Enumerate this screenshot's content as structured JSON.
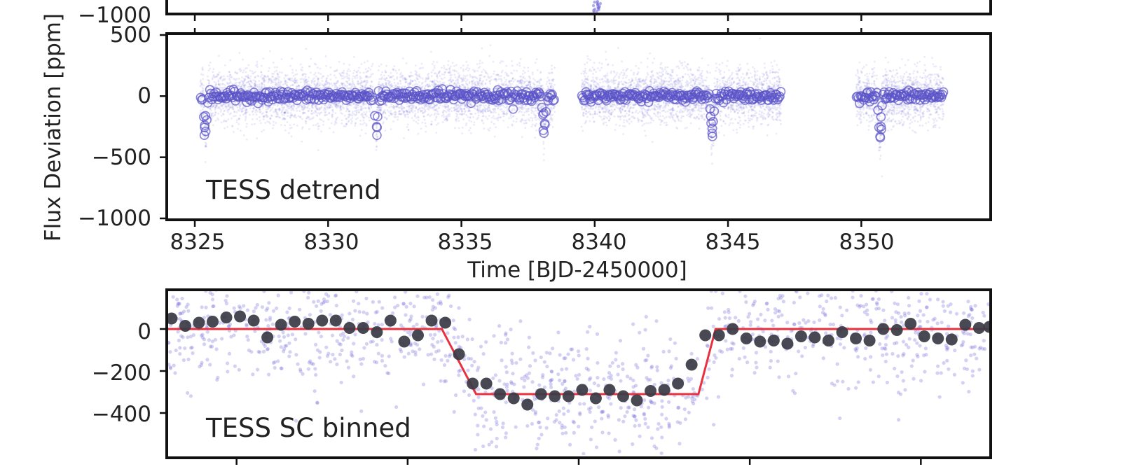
{
  "figure": {
    "y_axis_title": "Flux Deviation [ppm]",
    "x_axis_title": "Time [BJD-2450000]"
  },
  "colors": {
    "raw_points": "#6f68d8",
    "binned_circles": "#5a52c8",
    "binned_dots": "#3a3a44",
    "model_line": "#e8313f",
    "frame": "#111111"
  },
  "chart_data": [
    {
      "type": "scatter",
      "name": "top-panel-partial",
      "ylim": [
        -1000,
        500
      ],
      "yticks": [
        {
          "value": -1000,
          "label": "−1000"
        }
      ],
      "xlim": [
        8324.0,
        8354.8
      ],
      "xticks": [
        8325,
        8330,
        8335,
        8340,
        8345,
        8350
      ],
      "grid": false
    },
    {
      "type": "scatter",
      "panel_label": "TESS detrend",
      "ylim": [
        -1000,
        500
      ],
      "yticks": [
        {
          "value": 500,
          "label": "500"
        },
        {
          "value": 0,
          "label": "0"
        },
        {
          "value": -500,
          "label": "−500"
        },
        {
          "value": -1000,
          "label": "−1000"
        }
      ],
      "xlim": [
        8324.0,
        8354.8
      ],
      "xticks": [
        {
          "value": 8325,
          "label": "8325"
        },
        {
          "value": 8330,
          "label": "8330"
        },
        {
          "value": 8335,
          "label": "8335"
        },
        {
          "value": 8340,
          "label": "8340"
        },
        {
          "value": 8345,
          "label": "8345"
        },
        {
          "value": 8350,
          "label": "8350"
        }
      ],
      "data_segments": [
        [
          8325.2,
          8331.7
        ],
        [
          8331.8,
          8338.5
        ],
        [
          8339.5,
          8347.0
        ],
        [
          8349.8,
          8353.1
        ]
      ],
      "transit_dips": [
        {
          "time": 8325.4,
          "depth": -320
        },
        {
          "time": 8331.8,
          "depth": -320
        },
        {
          "time": 8338.1,
          "depth": -280
        },
        {
          "time": 8344.4,
          "depth": -330
        },
        {
          "time": 8350.7,
          "depth": -340
        }
      ],
      "grid": false
    },
    {
      "type": "scatter",
      "panel_label": "TESS SC binned",
      "ylim": [
        -600,
        180
      ],
      "yticks": [
        {
          "value": 0,
          "label": "0"
        },
        {
          "value": -200,
          "label": "−200"
        },
        {
          "value": -400,
          "label": "−400"
        }
      ],
      "xlim": [
        -2.4,
        2.4
      ],
      "binned_series": {
        "x": [
          -2.38,
          -2.3,
          -2.22,
          -2.14,
          -2.06,
          -1.98,
          -1.9,
          -1.82,
          -1.74,
          -1.66,
          -1.58,
          -1.5,
          -1.42,
          -1.34,
          -1.26,
          -1.18,
          -1.1,
          -1.02,
          -0.94,
          -0.86,
          -0.78,
          -0.7,
          -0.62,
          -0.54,
          -0.46,
          -0.38,
          -0.3,
          -0.22,
          -0.14,
          -0.06,
          0.02,
          0.1,
          0.18,
          0.26,
          0.34,
          0.42,
          0.5,
          0.58,
          0.66,
          0.74,
          0.82,
          0.9,
          0.98,
          1.06,
          1.14,
          1.22,
          1.3,
          1.38,
          1.46,
          1.54,
          1.62,
          1.7,
          1.78,
          1.86,
          1.94,
          2.02,
          2.1,
          2.18,
          2.26,
          2.34,
          2.4
        ],
        "y": [
          50,
          15,
          30,
          35,
          55,
          60,
          40,
          -40,
          20,
          35,
          25,
          40,
          40,
          5,
          5,
          -15,
          40,
          -60,
          -30,
          40,
          30,
          -120,
          -260,
          -260,
          -310,
          -330,
          -360,
          -310,
          -320,
          -320,
          -290,
          -330,
          -290,
          -320,
          -340,
          -295,
          -290,
          -260,
          -170,
          -30,
          -30,
          0,
          -45,
          -60,
          -55,
          -70,
          -35,
          -40,
          -55,
          -15,
          -45,
          -55,
          0,
          -5,
          25,
          -35,
          -45,
          -50,
          20,
          5,
          10
        ]
      },
      "model": {
        "out_of_transit": 0,
        "in_transit": -310,
        "ingress": [
          -0.8,
          -0.6
        ],
        "egress": [
          0.7,
          0.8
        ]
      },
      "grid": false
    }
  ]
}
